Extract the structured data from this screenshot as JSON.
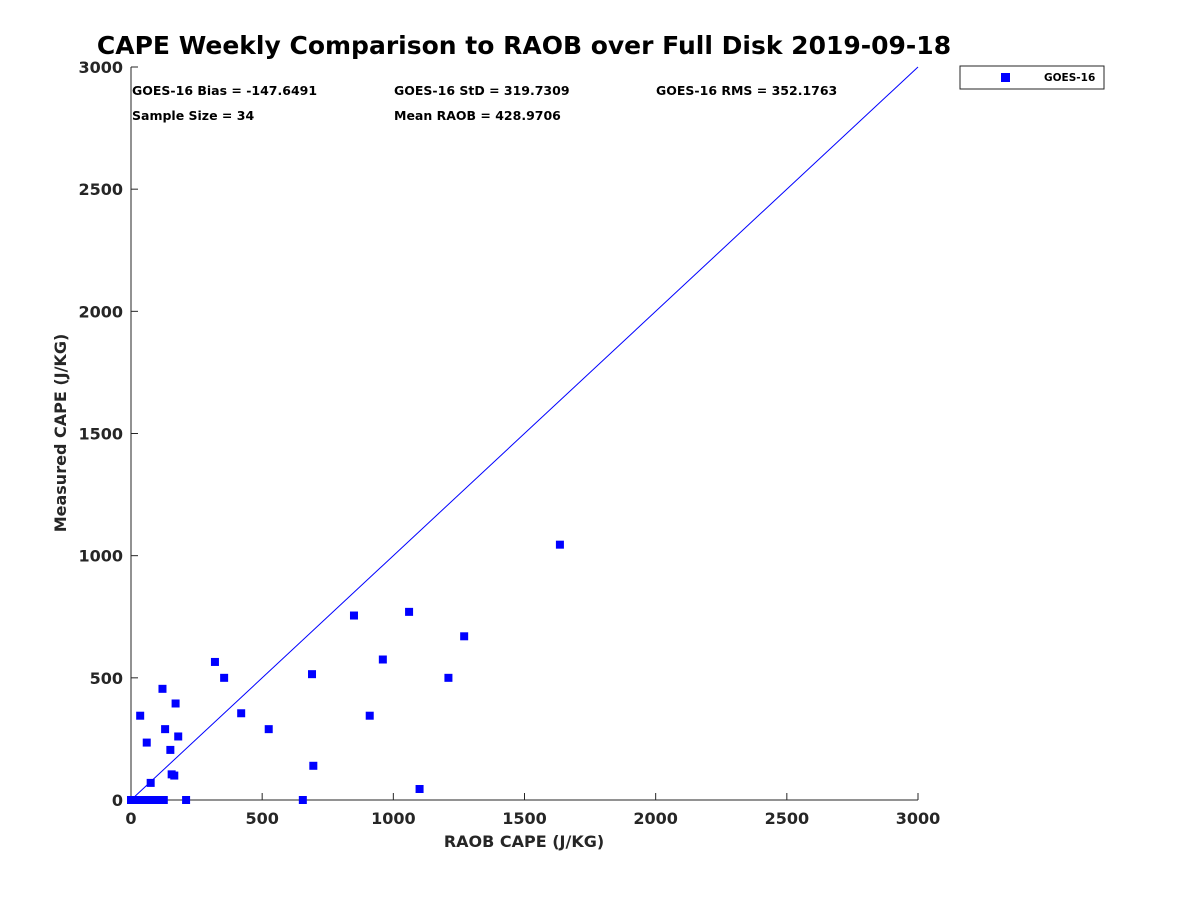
{
  "chart_data": {
    "type": "scatter",
    "title": "CAPE Weekly Comparison to RAOB over Full Disk 2019-09-18",
    "xlabel": "RAOB CAPE (J/KG)",
    "ylabel": "Measured CAPE (J/KG)",
    "xlim": [
      0,
      3000
    ],
    "ylim": [
      0,
      3000
    ],
    "xticks": [
      0,
      500,
      1000,
      1500,
      2000,
      2500,
      3000
    ],
    "yticks": [
      0,
      500,
      1000,
      1500,
      2000,
      2500,
      3000
    ],
    "xtick_labels": [
      "0",
      "500",
      "1000",
      "1500",
      "2000",
      "2500",
      "3000"
    ],
    "ytick_labels": [
      "0",
      "500",
      "1000",
      "1500",
      "2000",
      "2500",
      "3000"
    ],
    "reference_line": {
      "from": [
        0,
        0
      ],
      "to": [
        3000,
        3000
      ]
    },
    "legend_position": "top-right outside",
    "stats": {
      "bias": "GOES-16 Bias = -147.6491",
      "std": "GOES-16 StD = 319.7309",
      "rms": "GOES-16 RMS = 352.1763",
      "sample_size": "Sample Size = 34",
      "mean_raob": "Mean RAOB = 428.9706"
    },
    "series": [
      {
        "name": "GOES-16",
        "color": "#0000ff",
        "marker": "square",
        "points": [
          [
            0,
            0
          ],
          [
            10,
            0
          ],
          [
            25,
            0
          ],
          [
            40,
            0
          ],
          [
            60,
            0
          ],
          [
            80,
            0
          ],
          [
            100,
            0
          ],
          [
            125,
            0
          ],
          [
            210,
            0
          ],
          [
            655,
            0
          ],
          [
            35,
            345
          ],
          [
            60,
            235
          ],
          [
            75,
            70
          ],
          [
            120,
            455
          ],
          [
            130,
            290
          ],
          [
            150,
            205
          ],
          [
            155,
            105
          ],
          [
            165,
            100
          ],
          [
            170,
            395
          ],
          [
            180,
            260
          ],
          [
            320,
            565
          ],
          [
            355,
            500
          ],
          [
            420,
            355
          ],
          [
            525,
            290
          ],
          [
            690,
            515
          ],
          [
            695,
            140
          ],
          [
            850,
            755
          ],
          [
            910,
            345
          ],
          [
            960,
            575
          ],
          [
            1060,
            770
          ],
          [
            1100,
            45
          ],
          [
            1210,
            500
          ],
          [
            1270,
            670
          ],
          [
            1635,
            1045
          ]
        ]
      }
    ]
  }
}
